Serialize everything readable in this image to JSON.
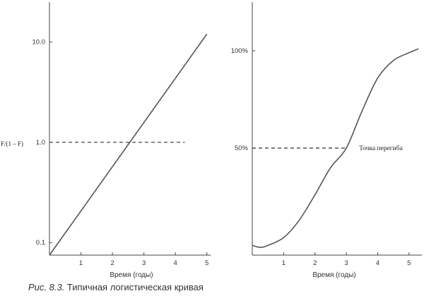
{
  "caption": {
    "prefix": "Рис. 8.3.",
    "text": " Типичная логистическая кривая"
  },
  "chart_data": [
    {
      "type": "line",
      "title": "",
      "ylabel": "F/(1 – F)",
      "xlabel": "Время (годы)",
      "y_scale": "log",
      "xlim": [
        0,
        5.5
      ],
      "ylim": [
        0.075,
        25
      ],
      "x_ticks": [
        1,
        2,
        3,
        4,
        5
      ],
      "y_ticks": [
        {
          "value": 0.1,
          "label": "0.1"
        },
        {
          "value": 1,
          "label": "1.0"
        },
        {
          "value": 10,
          "label": "10.0"
        }
      ],
      "series": [
        {
          "x": [
            0,
            5
          ],
          "y": [
            0.075,
            12
          ]
        }
      ],
      "reference_line": {
        "y": 1,
        "x_end": 4.3
      },
      "grid": false
    },
    {
      "type": "line",
      "title": "",
      "ylabel": "",
      "xlabel": "Время (годы)",
      "y_scale": "linear",
      "xlim": [
        0,
        5.5
      ],
      "ylim": [
        -0.05,
        1.25
      ],
      "x_ticks": [
        1,
        2,
        3,
        4,
        5
      ],
      "y_ticks": [
        {
          "value": 0.5,
          "label": "50%"
        },
        {
          "value": 1,
          "label": "100%"
        }
      ],
      "series": [
        {
          "x": [
            0,
            0.25,
            0.5,
            1,
            1.5,
            2,
            2.5,
            3,
            3.5,
            4,
            4.5,
            5,
            5.3
          ],
          "y": [
            0.0,
            -0.01,
            0.0,
            0.04,
            0.13,
            0.26,
            0.4,
            0.5,
            0.69,
            0.86,
            0.95,
            0.99,
            1.01
          ]
        }
      ],
      "reference_line": {
        "y": 0.5,
        "x_end": 3
      },
      "annotation": {
        "text": "Точка перегиба",
        "x": 3,
        "y": 0.5
      },
      "grid": false
    }
  ]
}
